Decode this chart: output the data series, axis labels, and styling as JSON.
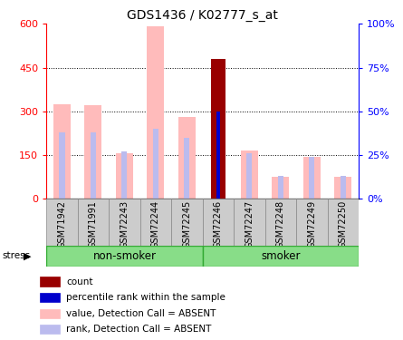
{
  "title": "GDS1436 / K02777_s_at",
  "samples": [
    "GSM71942",
    "GSM71991",
    "GSM72243",
    "GSM72244",
    "GSM72245",
    "GSM72246",
    "GSM72247",
    "GSM72248",
    "GSM72249",
    "GSM72250"
  ],
  "value_absent": [
    325,
    320,
    155,
    590,
    280,
    0,
    165,
    75,
    145,
    75
  ],
  "rank_absent_pct": [
    38,
    38,
    27,
    40,
    35,
    0,
    26,
    13,
    24,
    13
  ],
  "count_value": [
    0,
    0,
    0,
    0,
    0,
    480,
    0,
    0,
    0,
    0
  ],
  "percentile_rank_pct": [
    0,
    0,
    0,
    0,
    0,
    50,
    0,
    0,
    0,
    0
  ],
  "color_count": "#990000",
  "color_percentile": "#0000cc",
  "color_value_absent": "#ffbbbb",
  "color_rank_absent": "#bbbbee",
  "yticks_left": [
    0,
    150,
    300,
    450,
    600
  ],
  "yticks_left_labels": [
    "0",
    "150",
    "300",
    "450",
    "600"
  ],
  "yticks_right": [
    0,
    25,
    50,
    75,
    100
  ],
  "yticks_right_labels": [
    "0%",
    "25%",
    "50%",
    "75%",
    "100%"
  ],
  "legend_items": [
    {
      "label": "count",
      "color": "#990000"
    },
    {
      "label": "percentile rank within the sample",
      "color": "#0000cc"
    },
    {
      "label": "value, Detection Call = ABSENT",
      "color": "#ffbbbb"
    },
    {
      "label": "rank, Detection Call = ABSENT",
      "color": "#bbbbee"
    }
  ]
}
